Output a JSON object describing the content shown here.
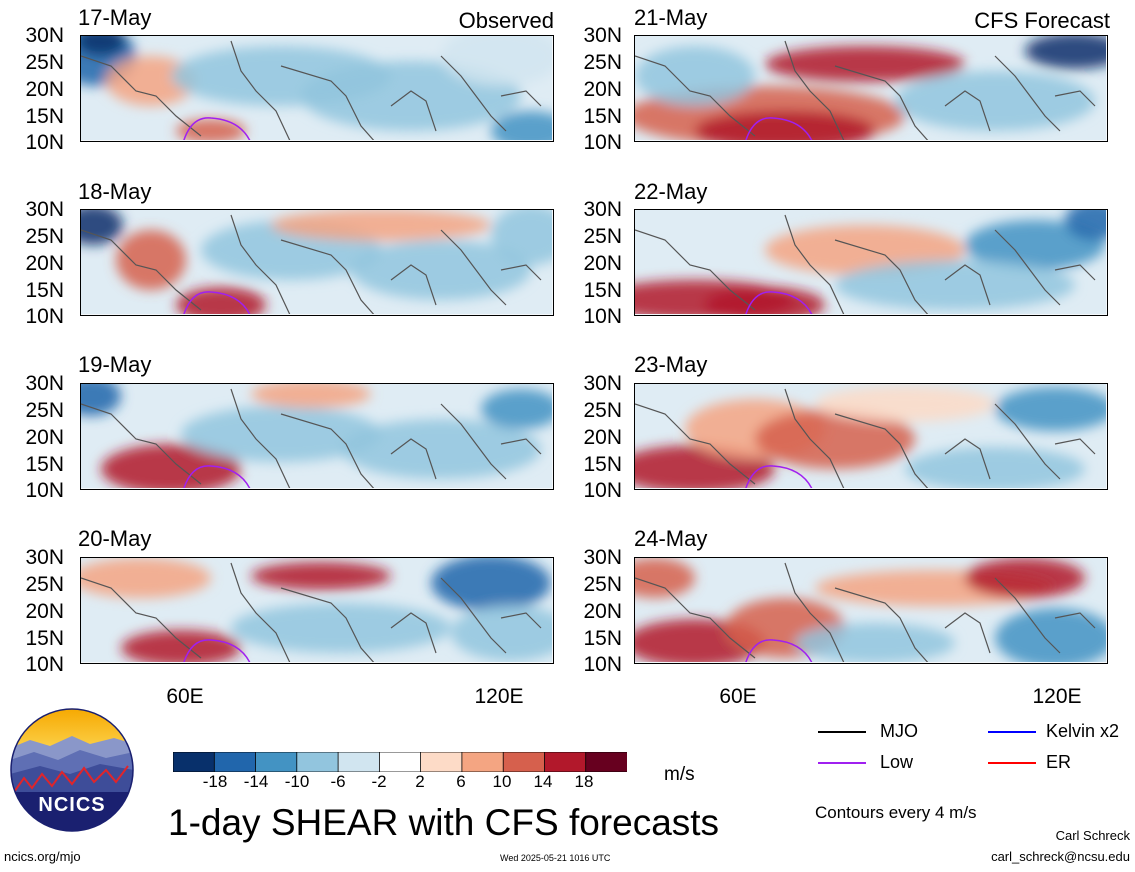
{
  "panels": [
    {
      "id": "p1",
      "date": "17-May",
      "tag": "Observed"
    },
    {
      "id": "p2",
      "date": "18-May",
      "tag": ""
    },
    {
      "id": "p3",
      "date": "19-May",
      "tag": ""
    },
    {
      "id": "p4",
      "date": "20-May",
      "tag": ""
    },
    {
      "id": "p5",
      "date": "21-May",
      "tag": "CFS Forecast"
    },
    {
      "id": "p6",
      "date": "22-May",
      "tag": ""
    },
    {
      "id": "p7",
      "date": "23-May",
      "tag": ""
    },
    {
      "id": "p8",
      "date": "24-May",
      "tag": ""
    }
  ],
  "lat_labels": [
    "30N",
    "25N",
    "20N",
    "15N",
    "10N"
  ],
  "lon_labels": [
    "60E",
    "120E"
  ],
  "colorbar": {
    "colors": [
      "#08306b",
      "#2166ac",
      "#4393c3",
      "#92c5de",
      "#d1e5f0",
      "#ffffff",
      "#fddbc7",
      "#f4a582",
      "#d6604d",
      "#b2182b",
      "#67001f"
    ],
    "labels": [
      "-18",
      "-14",
      "-10",
      "-6",
      "-2",
      "2",
      "6",
      "10",
      "14",
      "18"
    ],
    "unit": "m/s"
  },
  "legend": {
    "items": [
      {
        "label": "MJO",
        "color": "#000000"
      },
      {
        "label": "Kelvin x2",
        "color": "#0000ff"
      },
      {
        "label": "Low",
        "color": "#a020f0"
      },
      {
        "label": "ER",
        "color": "#ff0000"
      }
    ],
    "contour_note": "Contours every 4 m/s"
  },
  "logo_text": "NCICS",
  "main_title": "1-day SHEAR with CFS forecasts",
  "footer": {
    "url": "ncics.org/mjo",
    "timestamp": "Wed 2025-05-21 1016 UTC",
    "author": "Carl Schreck",
    "email": "carl_schreck@ncsu.edu"
  },
  "colors": {
    "coast": "#555555",
    "low_contour": "#a020f0"
  }
}
